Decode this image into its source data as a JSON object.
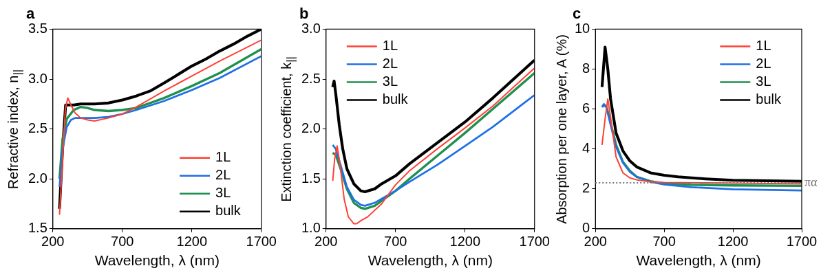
{
  "chart_data": [
    {
      "type": "line",
      "title": "a",
      "xlabel": "Wavelength, λ (nm)",
      "ylabel": "Refractive index, n$_{||}$",
      "xlim": [
        200,
        1700
      ],
      "xticks": [
        200,
        700,
        1200,
        1700
      ],
      "ylim": [
        1.5,
        3.5
      ],
      "yticks": [
        1.5,
        {
          "value": 2,
          "label": "2.0"
        },
        2.5,
        {
          "value": 3,
          "label": "3.0"
        },
        3.5
      ],
      "legend": "bottom right",
      "series": [
        {
          "name": "1L",
          "color": "#ff4033",
          "x": [
            248,
            270,
            290,
            308,
            330,
            360,
            400,
            450,
            500,
            600,
            700,
            800,
            900,
            1000,
            1200,
            1400,
            1700
          ],
          "values": [
            1.64,
            2.2,
            2.7,
            2.81,
            2.74,
            2.66,
            2.61,
            2.59,
            2.58,
            2.61,
            2.65,
            2.72,
            2.8,
            2.88,
            3.03,
            3.18,
            3.39
          ]
        },
        {
          "name": "2L",
          "color": "#1f6fe6",
          "x": [
            248,
            270,
            300,
            330,
            360,
            500,
            600,
            700,
            800,
            1000,
            1200,
            1400,
            1700
          ],
          "values": [
            1.92,
            2.3,
            2.52,
            2.59,
            2.61,
            2.61,
            2.62,
            2.65,
            2.69,
            2.78,
            2.89,
            3.01,
            3.23
          ]
        },
        {
          "name": "3L",
          "color": "#1e9050",
          "x": [
            248,
            270,
            300,
            350,
            400,
            450,
            500,
            600,
            700,
            800,
            1000,
            1200,
            1400,
            1700
          ],
          "values": [
            2.0,
            2.4,
            2.6,
            2.69,
            2.72,
            2.71,
            2.69,
            2.68,
            2.69,
            2.71,
            2.81,
            2.93,
            3.06,
            3.3
          ]
        },
        {
          "name": "bulk",
          "color": "#000000",
          "x": [
            248,
            270,
            292,
            350,
            400,
            500,
            600,
            700,
            800,
            900,
            1000,
            1200,
            1300,
            1400,
            1500,
            1600,
            1700
          ],
          "values": [
            1.7,
            2.3,
            2.74,
            2.74,
            2.75,
            2.75,
            2.76,
            2.79,
            2.83,
            2.88,
            2.96,
            3.13,
            3.2,
            3.28,
            3.35,
            3.43,
            3.5
          ]
        }
      ]
    },
    {
      "type": "line",
      "title": "b",
      "xlabel": "Wavelength, λ (nm)",
      "ylabel": "Extinction coefficient, k$_{||}$",
      "xlim": [
        200,
        1700
      ],
      "xticks": [
        200,
        700,
        1200,
        1700
      ],
      "ylim": [
        1.0,
        3.0
      ],
      "yticks": [
        {
          "value": 1,
          "label": "1.0"
        },
        1.5,
        {
          "value": 2,
          "label": "2.0"
        },
        2.5,
        {
          "value": 3,
          "label": "3.0"
        }
      ],
      "legend": "top left",
      "series": [
        {
          "name": "1L",
          "color": "#ff4033",
          "x": [
            248,
            262,
            280,
            300,
            330,
            360,
            400,
            420,
            450,
            500,
            600,
            700,
            800,
            1000,
            1200,
            1400,
            1700
          ],
          "values": [
            1.48,
            1.7,
            1.83,
            1.65,
            1.3,
            1.12,
            1.05,
            1.05,
            1.08,
            1.12,
            1.25,
            1.44,
            1.58,
            1.8,
            2.01,
            2.23,
            2.61
          ]
        },
        {
          "name": "2L",
          "color": "#1f6fe6",
          "x": [
            248,
            270,
            300,
            350,
            400,
            450,
            480,
            550,
            600,
            700,
            800,
            1000,
            1200,
            1400,
            1700
          ],
          "values": [
            1.84,
            1.8,
            1.66,
            1.42,
            1.29,
            1.24,
            1.23,
            1.26,
            1.3,
            1.38,
            1.47,
            1.64,
            1.83,
            2.02,
            2.34
          ]
        },
        {
          "name": "3L",
          "color": "#1e9050",
          "x": [
            248,
            270,
            300,
            350,
            400,
            450,
            480,
            550,
            600,
            700,
            800,
            1000,
            1200,
            1400,
            1700
          ],
          "values": [
            1.76,
            1.74,
            1.62,
            1.4,
            1.26,
            1.21,
            1.2,
            1.23,
            1.28,
            1.38,
            1.5,
            1.73,
            1.96,
            2.2,
            2.56
          ]
        },
        {
          "name": "bulk",
          "color": "#000000",
          "x": [
            248,
            258,
            270,
            295,
            320,
            350,
            400,
            450,
            480,
            550,
            600,
            700,
            800,
            1000,
            1200,
            1400,
            1700
          ],
          "values": [
            2.42,
            2.48,
            2.35,
            2.04,
            1.8,
            1.6,
            1.45,
            1.38,
            1.37,
            1.4,
            1.45,
            1.53,
            1.65,
            1.86,
            2.07,
            2.31,
            2.69
          ]
        }
      ]
    },
    {
      "type": "line",
      "title": "c",
      "xlabel": "Wavelength, λ (nm)",
      "ylabel": "Absorption per one layer, A (%)",
      "xlim": [
        200,
        1700
      ],
      "xticks": [
        200,
        700,
        1200,
        1700
      ],
      "ylim": [
        0,
        10
      ],
      "yticks": [
        0,
        2,
        4,
        6,
        8,
        10
      ],
      "legend": "top right",
      "ref_lines": [
        {
          "axis": "y",
          "value": 2.3,
          "label": "πα",
          "color": "#777777",
          "line_style": "dotted"
        }
      ],
      "series": [
        {
          "name": "1L",
          "color": "#ff4033",
          "x": [
            248,
            270,
            290,
            310,
            350,
            400,
            450,
            500,
            600,
            700,
            1000,
            1700
          ],
          "values": [
            4.2,
            5.5,
            6.5,
            5.6,
            3.6,
            2.8,
            2.55,
            2.45,
            2.35,
            2.32,
            2.3,
            2.25
          ]
        },
        {
          "name": "2L",
          "color": "#1f6fe6",
          "x": [
            248,
            262,
            280,
            300,
            350,
            400,
            450,
            500,
            600,
            700,
            900,
            1200,
            1700
          ],
          "values": [
            6.1,
            6.25,
            6.1,
            5.5,
            4.1,
            3.3,
            2.85,
            2.6,
            2.35,
            2.22,
            2.08,
            1.98,
            1.92
          ]
        },
        {
          "name": "3L",
          "color": "#1e9050",
          "x": [
            248,
            262,
            280,
            300,
            350,
            400,
            450,
            500,
            600,
            700,
            900,
            1200,
            1700
          ],
          "values": [
            6.1,
            6.2,
            6.1,
            5.6,
            4.2,
            3.35,
            2.9,
            2.6,
            2.38,
            2.27,
            2.2,
            2.17,
            2.15
          ]
        },
        {
          "name": "bulk",
          "color": "#000000",
          "x": [
            248,
            270,
            290,
            310,
            350,
            400,
            450,
            500,
            600,
            700,
            800,
            1000,
            1200,
            1700
          ],
          "values": [
            7.1,
            9.1,
            8.0,
            6.5,
            4.8,
            3.9,
            3.4,
            3.1,
            2.8,
            2.68,
            2.6,
            2.5,
            2.43,
            2.38
          ]
        }
      ]
    }
  ]
}
